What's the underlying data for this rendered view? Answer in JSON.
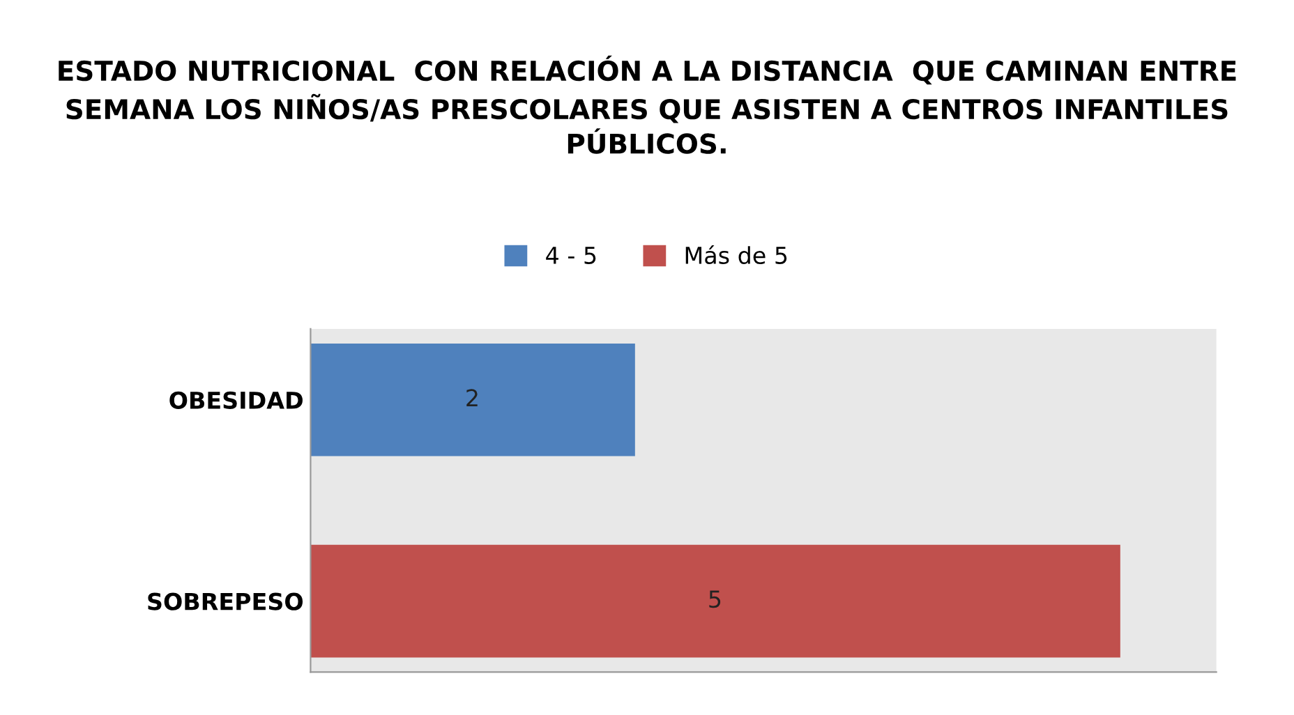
{
  "chart_data": {
    "type": "bar",
    "orientation": "horizontal",
    "stacked": true,
    "title": "ESTADO NUTRICIONAL  CON RELACIÓN A LA DISTANCIA  QUE CAMINAN ENTRE SEMANA LOS NIÑOS/AS PRESCOLARES QUE ASISTEN A CENTROS INFANTILES PÚBLICOS.",
    "categories": [
      "OBESIDAD",
      "SOBREPESO"
    ],
    "series": [
      {
        "name": "4 - 5",
        "color": "#4f81bd",
        "values": [
          2,
          null
        ]
      },
      {
        "name": "Más de 5",
        "color": "#c0504d",
        "values": [
          null,
          5
        ]
      }
    ],
    "xlim": [
      0,
      5.6
    ],
    "tick_labels": "y",
    "data_labels": true,
    "legend": "top",
    "grid": false
  }
}
